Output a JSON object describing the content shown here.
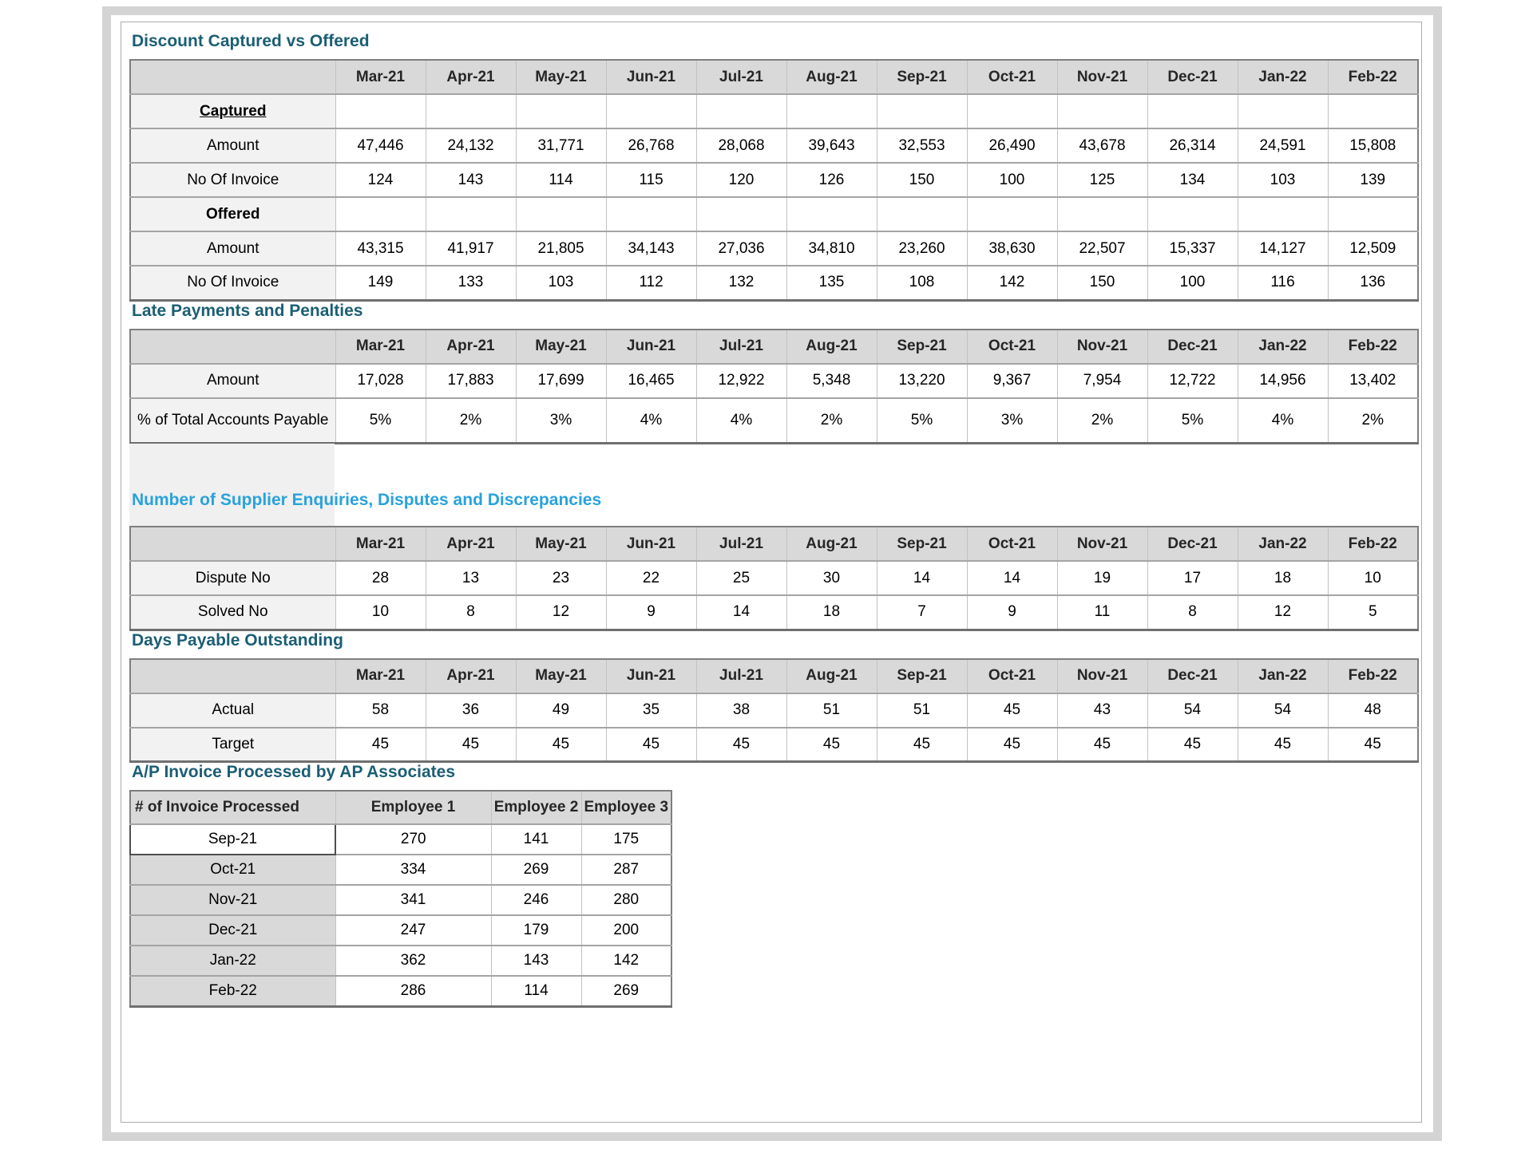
{
  "colors": {
    "title_teal": "#1B5E74",
    "title_blue": "#29A2DC",
    "header_bg": "#D9D9D9",
    "label_bg": "#F2F2F2"
  },
  "months": [
    "Mar-21",
    "Apr-21",
    "May-21",
    "Jun-21",
    "Jul-21",
    "Aug-21",
    "Sep-21",
    "Oct-21",
    "Nov-21",
    "Dec-21",
    "Jan-22",
    "Feb-22"
  ],
  "tables": {
    "discount": {
      "title": "Discount Captured vs Offered",
      "captured_label": "Captured",
      "offered_label": "Offered",
      "amount_label": "Amount",
      "invoice_label": "No Of Invoice",
      "captured_amount": [
        "47,446",
        "24,132",
        "31,771",
        "26,768",
        "28,068",
        "39,643",
        "32,553",
        "26,490",
        "43,678",
        "26,314",
        "24,591",
        "15,808"
      ],
      "captured_invoices": [
        "124",
        "143",
        "114",
        "115",
        "120",
        "126",
        "150",
        "100",
        "125",
        "134",
        "103",
        "139"
      ],
      "offered_amount": [
        "43,315",
        "41,917",
        "21,805",
        "34,143",
        "27,036",
        "34,810",
        "23,260",
        "38,630",
        "22,507",
        "15,337",
        "14,127",
        "12,509"
      ],
      "offered_invoices": [
        "149",
        "133",
        "103",
        "112",
        "132",
        "135",
        "108",
        "142",
        "150",
        "100",
        "116",
        "136"
      ]
    },
    "late_payments": {
      "title": "Late Payments and Penalties",
      "amount_label": "Amount",
      "pct_label": "% of Total Accounts Payable",
      "amount": [
        "17,028",
        "17,883",
        "17,699",
        "16,465",
        "12,922",
        "5,348",
        "13,220",
        "9,367",
        "7,954",
        "12,722",
        "14,956",
        "13,402"
      ],
      "pct": [
        "5%",
        "2%",
        "3%",
        "4%",
        "4%",
        "2%",
        "5%",
        "3%",
        "2%",
        "5%",
        "4%",
        "2%"
      ]
    },
    "enquiries": {
      "title": "Number of Supplier Enquiries, Disputes and Discrepancies",
      "dispute_label": "Dispute No",
      "solved_label": "Solved No",
      "dispute": [
        "28",
        "13",
        "23",
        "22",
        "25",
        "30",
        "14",
        "14",
        "19",
        "17",
        "18",
        "10"
      ],
      "solved": [
        "10",
        "8",
        "12",
        "9",
        "14",
        "18",
        "7",
        "9",
        "11",
        "8",
        "12",
        "5"
      ]
    },
    "dpo": {
      "title": "Days Payable Outstanding",
      "actual_label": "Actual",
      "target_label": "Target",
      "actual": [
        "58",
        "36",
        "49",
        "35",
        "38",
        "51",
        "51",
        "45",
        "43",
        "54",
        "54",
        "48"
      ],
      "target": [
        "45",
        "45",
        "45",
        "45",
        "45",
        "45",
        "45",
        "45",
        "45",
        "45",
        "45",
        "45"
      ]
    },
    "ap_invoice": {
      "title": "A/P Invoice Processed by AP Associates",
      "header": [
        "# of Invoice Processed",
        "Employee 1",
        "Employee 2",
        "Employee 3"
      ],
      "rows": [
        {
          "label": "Sep-21",
          "values": [
            "270",
            "141",
            "175"
          ],
          "selected": true
        },
        {
          "label": "Oct-21",
          "values": [
            "334",
            "269",
            "287"
          ],
          "selected": false
        },
        {
          "label": "Nov-21",
          "values": [
            "341",
            "246",
            "280"
          ],
          "selected": false
        },
        {
          "label": "Dec-21",
          "values": [
            "247",
            "179",
            "200"
          ],
          "selected": false
        },
        {
          "label": "Jan-22",
          "values": [
            "362",
            "143",
            "142"
          ],
          "selected": false
        },
        {
          "label": "Feb-22",
          "values": [
            "286",
            "114",
            "269"
          ],
          "selected": false
        }
      ]
    }
  }
}
